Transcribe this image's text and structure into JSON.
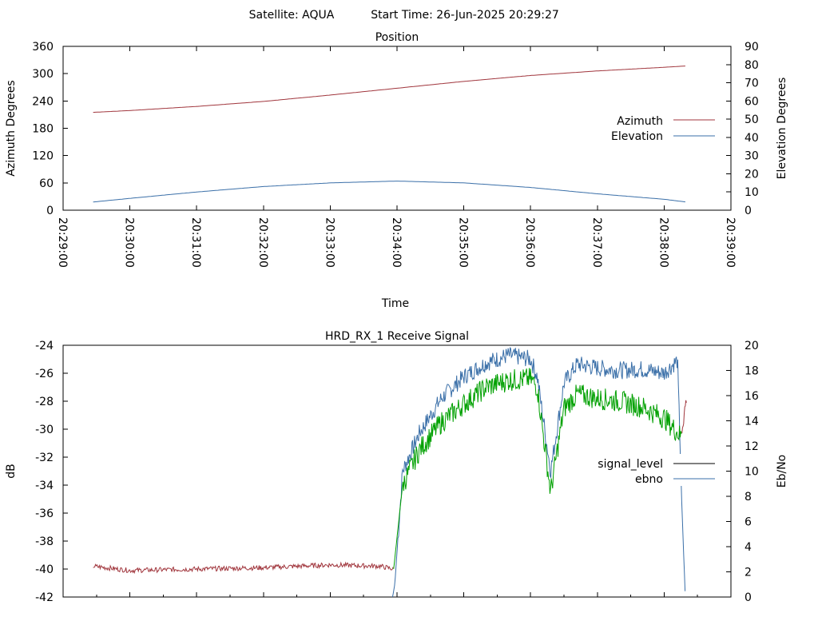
{
  "header": {
    "satellite_label": "Satellite: AQUA",
    "start_time_label": "Start Time: 26-Jun-2025 20:29:27"
  },
  "colors": {
    "azimuth": "#a0353c",
    "elevation": "#3a6fa8",
    "signal_level": "#000000",
    "ebno": "#3a6fa8",
    "signal_red": "#a0353c",
    "signal_green": "#00a000"
  },
  "chart_data": [
    {
      "type": "line",
      "title": "Position",
      "xlabel": "Time",
      "ylabel": "Azimuth Degrees",
      "y2label": "Elevation Degrees",
      "xticks": [
        "20:29:00",
        "20:30:00",
        "20:31:00",
        "20:32:00",
        "20:33:00",
        "20:34:00",
        "20:35:00",
        "20:36:00",
        "20:37:00",
        "20:38:00",
        "20:39:00"
      ],
      "xlim_seconds": [
        0,
        600
      ],
      "ylim": [
        0,
        360
      ],
      "yticks": [
        0,
        60,
        120,
        180,
        240,
        300,
        360
      ],
      "y2lim": [
        0,
        90
      ],
      "y2ticks": [
        0,
        10,
        20,
        30,
        40,
        50,
        60,
        70,
        80,
        90
      ],
      "legend_position": "right",
      "series": [
        {
          "name": "Azimuth",
          "axis": "y",
          "x_seconds": [
            27,
            60,
            120,
            180,
            240,
            300,
            360,
            420,
            480,
            540,
            560
          ],
          "values": [
            215,
            219,
            228,
            239,
            253,
            268,
            283,
            296,
            306,
            314,
            317
          ]
        },
        {
          "name": "Elevation",
          "axis": "y2",
          "x_seconds": [
            27,
            60,
            120,
            180,
            240,
            300,
            360,
            420,
            480,
            540,
            560
          ],
          "values": [
            4.5,
            6.5,
            10,
            13,
            15,
            16,
            15,
            12.5,
            9,
            6,
            4.5
          ]
        }
      ]
    },
    {
      "type": "line",
      "title": "HRD_RX_1 Receive Signal",
      "ylabel": "dB",
      "y2label": "Eb/No",
      "ylim": [
        -42,
        -24
      ],
      "yticks": [
        -42,
        -40,
        -38,
        -36,
        -34,
        -32,
        -30,
        -28,
        -26,
        -24
      ],
      "y2lim": [
        0,
        20
      ],
      "y2ticks": [
        0,
        2,
        4,
        6,
        8,
        10,
        12,
        14,
        16,
        18,
        20
      ],
      "legend_position": "right",
      "series": [
        {
          "name": "signal_level",
          "axis": "y",
          "x_seconds": [
            27,
            60,
            120,
            180,
            240,
            285,
            297,
            305,
            320,
            340,
            360,
            380,
            400,
            420,
            426,
            438,
            450,
            462,
            480,
            500,
            520,
            540,
            555,
            560
          ],
          "values": [
            -39.8,
            -40.1,
            -40.0,
            -39.9,
            -39.7,
            -39.8,
            -40.0,
            -34.0,
            -31.5,
            -29.5,
            -28.2,
            -27.0,
            -26.5,
            -26.4,
            -27.0,
            -34.5,
            -28.5,
            -27.5,
            -27.8,
            -28.0,
            -28.4,
            -29.2,
            -30.5,
            -27.8
          ]
        },
        {
          "name": "ebno",
          "axis": "y2",
          "x_seconds": [
            296,
            298,
            305,
            320,
            340,
            360,
            380,
            400,
            420,
            426,
            438,
            450,
            462,
            480,
            500,
            520,
            540,
            552,
            556,
            559
          ],
          "values": [
            0,
            1,
            10,
            13,
            15.8,
            17.5,
            18.6,
            19.2,
            18.9,
            17.5,
            10.0,
            17.0,
            18.5,
            18.2,
            18.0,
            18.1,
            17.8,
            18.8,
            7.0,
            0
          ]
        }
      ]
    }
  ]
}
